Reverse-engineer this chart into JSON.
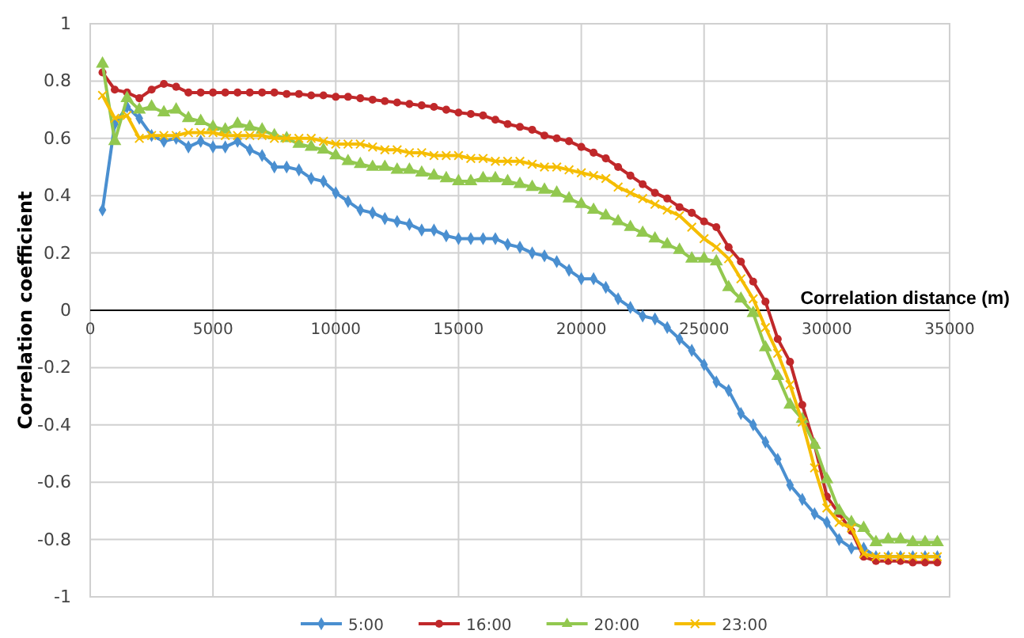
{
  "chart_data": {
    "type": "line",
    "xlabel": "Correlation distance (m)",
    "ylabel": "Correlation coefficient",
    "x": [
      500,
      1000,
      1500,
      2000,
      2500,
      3000,
      3500,
      4000,
      4500,
      5000,
      5500,
      6000,
      6500,
      7000,
      7500,
      8000,
      8500,
      9000,
      9500,
      10000,
      10500,
      11000,
      11500,
      12000,
      12500,
      13000,
      13500,
      14000,
      14500,
      15000,
      15500,
      16000,
      16500,
      17000,
      17500,
      18000,
      18500,
      19000,
      19500,
      20000,
      20500,
      21000,
      21500,
      22000,
      22500,
      23000,
      23500,
      24000,
      24500,
      25000,
      25500,
      26000,
      26500,
      27000,
      27500,
      28000,
      28500,
      29000,
      29500,
      30000,
      30500,
      31000,
      31500,
      32000,
      32500,
      33000,
      33500,
      34000,
      34500
    ],
    "series": [
      {
        "name": "5:00",
        "color": "#4a8fd0",
        "marker": "diamond",
        "values": [
          0.35,
          0.65,
          0.71,
          0.67,
          0.61,
          0.59,
          0.6,
          0.57,
          0.59,
          0.57,
          0.57,
          0.59,
          0.56,
          0.54,
          0.5,
          0.5,
          0.49,
          0.46,
          0.45,
          0.41,
          0.38,
          0.35,
          0.34,
          0.32,
          0.31,
          0.3,
          0.28,
          0.28,
          0.26,
          0.25,
          0.25,
          0.25,
          0.25,
          0.23,
          0.22,
          0.2,
          0.19,
          0.17,
          0.14,
          0.11,
          0.11,
          0.08,
          0.04,
          0.01,
          -0.02,
          -0.03,
          -0.06,
          -0.1,
          -0.14,
          -0.19,
          -0.25,
          -0.28,
          -0.36,
          -0.4,
          -0.46,
          -0.52,
          -0.61,
          -0.66,
          -0.71,
          -0.74,
          -0.8,
          -0.83,
          -0.83,
          -0.86,
          -0.86,
          -0.86,
          -0.86,
          -0.86,
          -0.86
        ]
      },
      {
        "name": "16:00",
        "color": "#c0282a",
        "marker": "circle",
        "values": [
          0.83,
          0.77,
          0.76,
          0.74,
          0.77,
          0.79,
          0.78,
          0.76,
          0.76,
          0.76,
          0.76,
          0.76,
          0.76,
          0.76,
          0.76,
          0.755,
          0.755,
          0.75,
          0.75,
          0.745,
          0.745,
          0.74,
          0.735,
          0.73,
          0.725,
          0.72,
          0.715,
          0.71,
          0.7,
          0.69,
          0.685,
          0.68,
          0.665,
          0.65,
          0.64,
          0.63,
          0.61,
          0.6,
          0.59,
          0.57,
          0.55,
          0.53,
          0.5,
          0.47,
          0.44,
          0.41,
          0.39,
          0.36,
          0.34,
          0.31,
          0.29,
          0.22,
          0.17,
          0.1,
          0.03,
          -0.1,
          -0.18,
          -0.33,
          -0.47,
          -0.65,
          -0.71,
          -0.77,
          -0.86,
          -0.875,
          -0.875,
          -0.875,
          -0.88,
          -0.88,
          -0.88
        ]
      },
      {
        "name": "20:00",
        "color": "#92c84f",
        "marker": "triangle",
        "values": [
          0.86,
          0.59,
          0.74,
          0.7,
          0.71,
          0.69,
          0.7,
          0.67,
          0.66,
          0.64,
          0.63,
          0.65,
          0.64,
          0.63,
          0.61,
          0.6,
          0.58,
          0.57,
          0.56,
          0.54,
          0.52,
          0.51,
          0.5,
          0.5,
          0.49,
          0.49,
          0.48,
          0.47,
          0.46,
          0.45,
          0.45,
          0.46,
          0.46,
          0.45,
          0.44,
          0.43,
          0.42,
          0.41,
          0.39,
          0.37,
          0.35,
          0.33,
          0.31,
          0.29,
          0.27,
          0.25,
          0.23,
          0.21,
          0.18,
          0.18,
          0.17,
          0.08,
          0.04,
          -0.01,
          -0.13,
          -0.23,
          -0.33,
          -0.38,
          -0.47,
          -0.59,
          -0.7,
          -0.74,
          -0.76,
          -0.81,
          -0.8,
          -0.8,
          -0.81,
          -0.81,
          -0.81
        ]
      },
      {
        "name": "23:00",
        "color": "#f5bd00",
        "marker": "cross",
        "values": [
          0.75,
          0.67,
          0.68,
          0.6,
          0.61,
          0.61,
          0.61,
          0.62,
          0.62,
          0.62,
          0.61,
          0.61,
          0.61,
          0.61,
          0.6,
          0.6,
          0.6,
          0.6,
          0.59,
          0.58,
          0.58,
          0.58,
          0.57,
          0.56,
          0.56,
          0.55,
          0.55,
          0.54,
          0.54,
          0.54,
          0.53,
          0.53,
          0.52,
          0.52,
          0.52,
          0.51,
          0.5,
          0.5,
          0.49,
          0.48,
          0.47,
          0.46,
          0.43,
          0.41,
          0.39,
          0.37,
          0.35,
          0.33,
          0.29,
          0.25,
          0.22,
          0.18,
          0.11,
          0.04,
          -0.06,
          -0.15,
          -0.26,
          -0.39,
          -0.55,
          -0.69,
          -0.74,
          -0.76,
          -0.85,
          -0.86,
          -0.86,
          -0.86,
          -0.86,
          -0.86,
          -0.86
        ]
      }
    ],
    "xlim": [
      0,
      35000
    ],
    "xticks": [
      0,
      5000,
      10000,
      15000,
      20000,
      25000,
      30000,
      35000
    ],
    "ylim": [
      -1,
      1
    ],
    "yticks": [
      -1,
      -0.8,
      -0.6,
      -0.4,
      -0.2,
      0,
      0.2,
      0.4,
      0.6,
      0.8,
      1
    ],
    "grid": true,
    "legend": "bottom"
  }
}
